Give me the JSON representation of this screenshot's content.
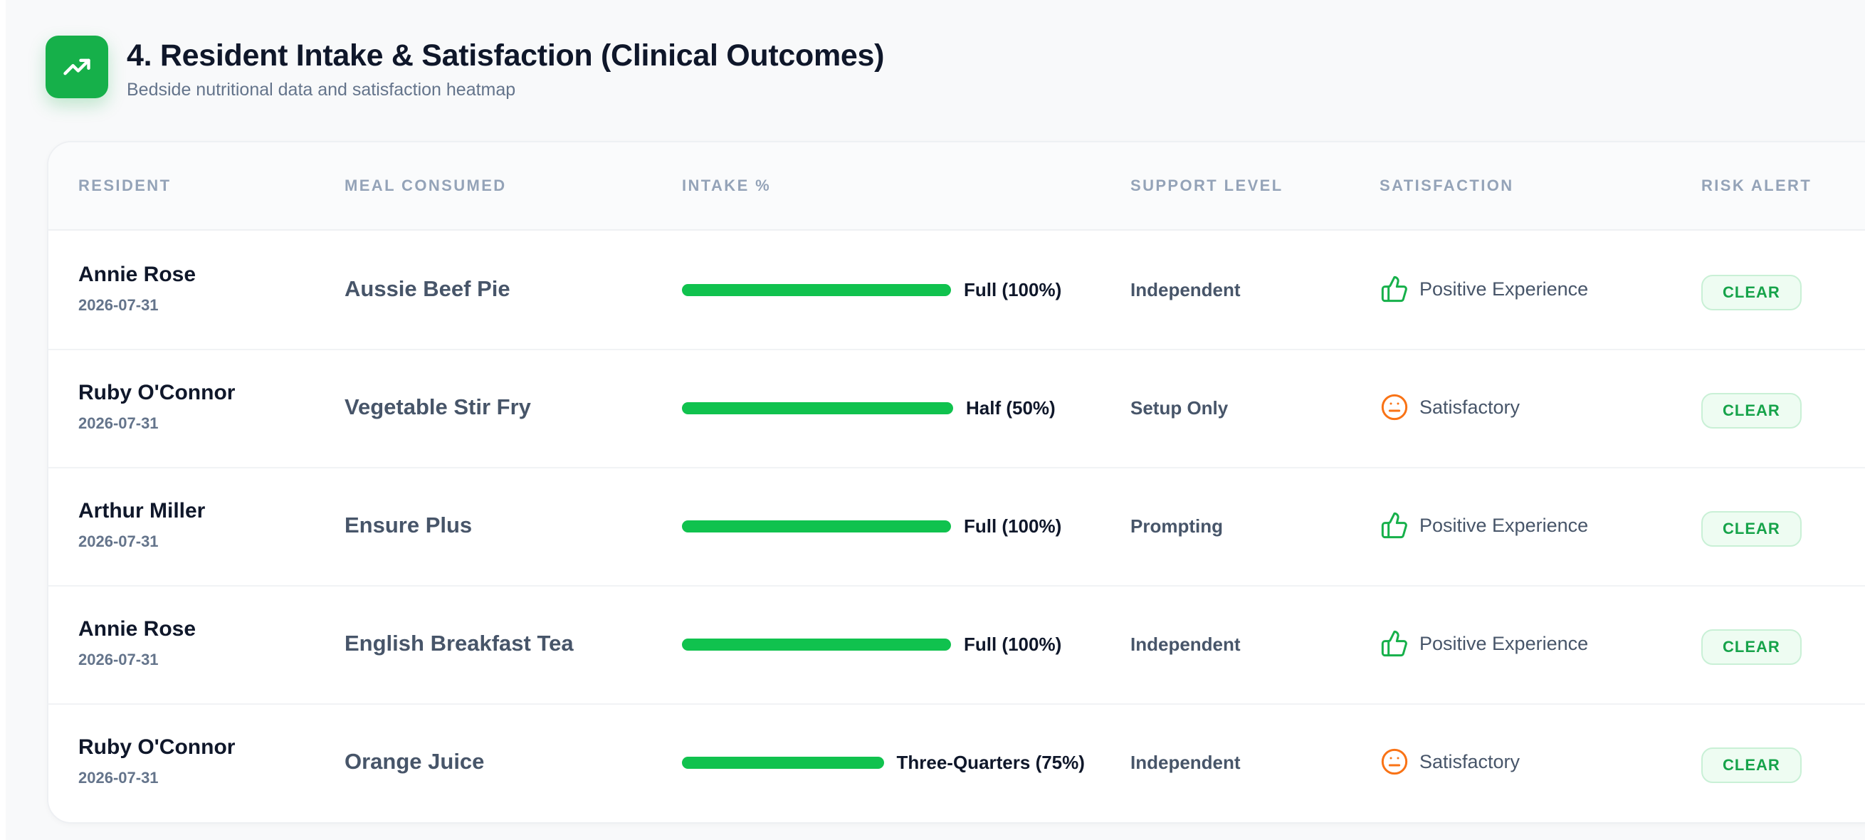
{
  "header": {
    "icon": "trending-up-icon",
    "title": "4. Resident Intake & Satisfaction (Clinical Outcomes)",
    "subtitle": "Bedside nutritional data and satisfaction heatmap",
    "accent_color": "#16b04a"
  },
  "table": {
    "columns": [
      "RESIDENT",
      "MEAL CONSUMED",
      "INTAKE %",
      "SUPPORT LEVEL",
      "SATISFACTION",
      "RISK ALERT"
    ],
    "rows": [
      {
        "name": "Annie Rose",
        "date": "2026-07-31",
        "meal": "Aussie Beef Pie",
        "intake_label": "Full (100%)",
        "intake_pct": 100,
        "support": "Independent",
        "satisfaction": "Positive Experience",
        "sat_icon": "thumbs-up-icon",
        "risk": "CLEAR"
      },
      {
        "name": "Ruby O'Connor",
        "date": "2026-07-31",
        "meal": "Vegetable Stir Fry",
        "intake_label": "Half (50%)",
        "intake_pct": 50,
        "support": "Setup Only",
        "satisfaction": "Satisfactory",
        "sat_icon": "neutral-face-icon",
        "risk": "CLEAR"
      },
      {
        "name": "Arthur Miller",
        "date": "2026-07-31",
        "meal": "Ensure Plus",
        "intake_label": "Full (100%)",
        "intake_pct": 100,
        "support": "Prompting",
        "satisfaction": "Positive Experience",
        "sat_icon": "thumbs-up-icon",
        "risk": "CLEAR"
      },
      {
        "name": "Annie Rose",
        "date": "2026-07-31",
        "meal": "English Breakfast Tea",
        "intake_label": "Full (100%)",
        "intake_pct": 100,
        "support": "Independent",
        "satisfaction": "Positive Experience",
        "sat_icon": "thumbs-up-icon",
        "risk": "CLEAR"
      },
      {
        "name": "Ruby O'Connor",
        "date": "2026-07-31",
        "meal": "Orange Juice",
        "intake_label": "Three-Quarters (75%)",
        "intake_pct": 75,
        "support": "Independent",
        "satisfaction": "Satisfactory",
        "sat_icon": "neutral-face-icon",
        "risk": "CLEAR"
      }
    ]
  },
  "colors": {
    "bar": "#10c24e",
    "positive": "#16b04a",
    "neutral": "#f97316",
    "clear_badge": "#16a34a"
  }
}
